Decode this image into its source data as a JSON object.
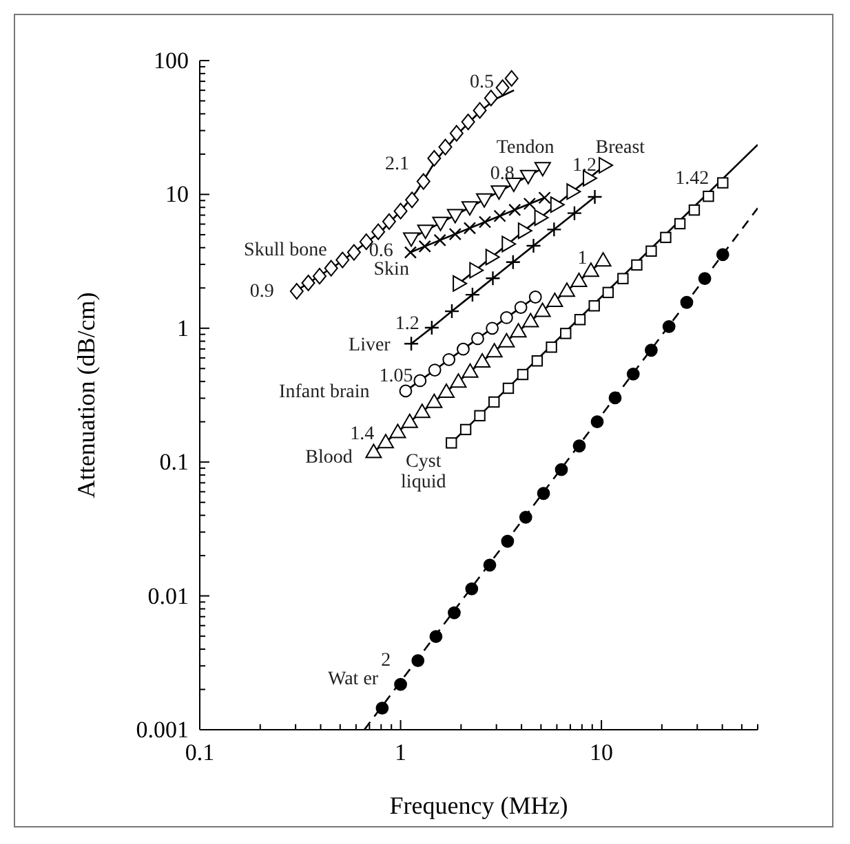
{
  "chart_data": {
    "type": "line",
    "xlabel": "Frequency (MHz)",
    "ylabel": "Attenuation (dB/cm)",
    "log": "xy",
    "grid": false,
    "legend": false,
    "xlim": [
      0.1,
      60
    ],
    "ylim": [
      0.001,
      100
    ],
    "xticks": [
      0.1,
      {
        "value": 0.2,
        "label": null
      },
      {
        "value": 0.3,
        "label": null
      },
      {
        "value": 0.4,
        "label": null
      },
      {
        "value": 0.5,
        "label": null
      },
      {
        "value": 0.6,
        "label": null
      },
      {
        "value": 0.7,
        "label": null
      },
      {
        "value": 0.8,
        "label": null
      },
      {
        "value": 0.9,
        "label": null
      },
      1,
      {
        "value": 2,
        "label": null
      },
      {
        "value": 3,
        "label": null
      },
      {
        "value": 4,
        "label": null
      },
      {
        "value": 5,
        "label": null
      },
      {
        "value": 6,
        "label": null
      },
      {
        "value": 7,
        "label": null
      },
      {
        "value": 8,
        "label": null
      },
      {
        "value": 9,
        "label": null
      },
      10,
      {
        "value": 20,
        "label": null
      },
      {
        "value": 30,
        "label": null
      },
      {
        "value": 40,
        "label": null
      },
      {
        "value": 50,
        "label": null
      },
      {
        "value": 60,
        "label": null
      }
    ],
    "yticks": [
      0.001,
      {
        "value": 0.002,
        "label": null
      },
      {
        "value": 0.003,
        "label": null
      },
      {
        "value": 0.004,
        "label": null
      },
      {
        "value": 0.005,
        "label": null
      },
      {
        "value": 0.006,
        "label": null
      },
      {
        "value": 0.007,
        "label": null
      },
      {
        "value": 0.008,
        "label": null
      },
      {
        "value": 0.009,
        "label": null
      },
      0.01,
      {
        "value": 0.02,
        "label": null
      },
      {
        "value": 0.03,
        "label": null
      },
      {
        "value": 0.04,
        "label": null
      },
      {
        "value": 0.05,
        "label": null
      },
      {
        "value": 0.06,
        "label": null
      },
      {
        "value": 0.07,
        "label": null
      },
      {
        "value": 0.08,
        "label": null
      },
      {
        "value": 0.09,
        "label": null
      },
      0.1,
      {
        "value": 0.2,
        "label": null
      },
      {
        "value": 0.3,
        "label": null
      },
      {
        "value": 0.4,
        "label": null
      },
      {
        "value": 0.5,
        "label": null
      },
      {
        "value": 0.6,
        "label": null
      },
      {
        "value": 0.7,
        "label": null
      },
      {
        "value": 0.8,
        "label": null
      },
      {
        "value": 0.9,
        "label": null
      },
      1,
      {
        "value": 2,
        "label": null
      },
      {
        "value": 3,
        "label": null
      },
      {
        "value": 4,
        "label": null
      },
      {
        "value": 5,
        "label": null
      },
      {
        "value": 6,
        "label": null
      },
      {
        "value": 7,
        "label": null
      },
      {
        "value": 8,
        "label": null
      },
      {
        "value": 9,
        "label": null
      },
      10,
      {
        "value": 20,
        "label": null
      },
      {
        "value": 30,
        "label": null
      },
      {
        "value": 40,
        "label": null
      },
      {
        "value": 50,
        "label": null
      },
      {
        "value": 60,
        "label": null
      },
      {
        "value": 70,
        "label": null
      },
      {
        "value": 80,
        "label": null
      },
      {
        "value": 90,
        "label": null
      },
      100
    ],
    "series": [
      {
        "name": "Skull bone",
        "type": "scatter",
        "marker": "diamond",
        "color": "#000000",
        "x": [
          0.304,
          0.347,
          0.395,
          0.451,
          0.514,
          0.586,
          0.675,
          0.774,
          0.877,
          1.0,
          1.14,
          1.3,
          1.47,
          1.67,
          1.9,
          2.17,
          2.48,
          2.82,
          3.22,
          3.57
        ],
        "values": [
          1.89,
          2.18,
          2.45,
          2.81,
          3.24,
          3.69,
          4.43,
          5.26,
          6.27,
          7.5,
          9.1,
          12.5,
          18.6,
          22.6,
          28.6,
          34.8,
          42.4,
          52.5,
          62.8,
          73.6
        ]
      },
      {
        "color": "#000000",
        "x": [
          0.3,
          0.5,
          0.8,
          1.0,
          1.2,
          1.5,
          2.0,
          2.5,
          3.0,
          3.67
        ],
        "values": [
          1.89,
          3.1,
          5.3,
          7.5,
          10.5,
          18,
          30,
          42,
          52,
          60
        ]
      },
      {
        "name": "Tendon",
        "marker": "triangle-down",
        "color": "#000000",
        "x": [
          1.13,
          1.33,
          1.58,
          1.87,
          2.21,
          2.61,
          3.09,
          3.66,
          4.32,
          5.1
        ],
        "values": [
          4.68,
          5.35,
          6.12,
          7.0,
          8.0,
          9.16,
          10.5,
          12.0,
          13.7,
          15.7
        ]
      },
      {
        "name": "Skin",
        "marker": "cross",
        "color": "#000000",
        "x": [
          1.12,
          1.32,
          1.57,
          1.87,
          2.21,
          2.63,
          3.12,
          3.7,
          4.39,
          5.21
        ],
        "values": [
          3.69,
          4.09,
          4.55,
          5.05,
          5.6,
          6.22,
          6.9,
          7.66,
          8.51,
          9.44
        ]
      },
      {
        "name": "Breast",
        "marker": "triangle-right",
        "color": "#000000",
        "x": [
          1.95,
          2.36,
          2.84,
          3.42,
          4.12,
          4.97,
          5.97,
          7.19,
          8.67,
          10.4
        ],
        "values": [
          2.16,
          2.71,
          3.4,
          4.26,
          5.35,
          6.7,
          8.38,
          10.5,
          13.2,
          16.5
        ]
      },
      {
        "name": "Liver",
        "marker": "plus",
        "color": "#000000",
        "x": [
          1.13,
          1.43,
          1.8,
          2.28,
          2.88,
          3.63,
          4.59,
          5.81,
          7.34,
          9.27
        ],
        "values": [
          0.766,
          1.01,
          1.34,
          1.78,
          2.36,
          3.12,
          4.13,
          5.47,
          7.24,
          9.59
        ]
      },
      {
        "name": "Infant brain",
        "marker": "circle",
        "color": "#000000",
        "x": [
          1.06,
          1.25,
          1.48,
          1.74,
          2.05,
          2.42,
          2.86,
          3.37,
          3.97,
          4.69
        ],
        "values": [
          0.34,
          0.406,
          0.487,
          0.583,
          0.698,
          0.836,
          1.0,
          1.2,
          1.43,
          1.71
        ]
      },
      {
        "name": "Blood",
        "marker": "triangle",
        "color": "#000000",
        "x": [
          0.734,
          0.843,
          0.968,
          1.11,
          1.28,
          1.47,
          1.69,
          1.94,
          2.22,
          2.55,
          2.93,
          3.37,
          3.86,
          4.44,
          5.09,
          5.86,
          6.73,
          7.73,
          8.87,
          10.2
        ],
        "values": [
          0.119,
          0.141,
          0.168,
          0.2,
          0.237,
          0.282,
          0.336,
          0.4,
          0.475,
          0.565,
          0.672,
          0.8,
          0.95,
          1.13,
          1.35,
          1.6,
          1.91,
          2.26,
          2.69,
          3.21
        ]
      },
      {
        "name": "Cyst liquid",
        "type": "scatter",
        "marker": "square",
        "color": "#000000",
        "x": [
          1.79,
          2.11,
          2.48,
          2.92,
          3.44,
          4.06,
          4.79,
          5.64,
          6.64,
          7.82,
          9.21,
          10.8,
          12.8,
          15.0,
          17.7,
          20.9,
          24.6,
          29.0,
          34.1,
          40.2
        ],
        "values": [
          0.139,
          0.175,
          0.222,
          0.281,
          0.356,
          0.451,
          0.57,
          0.722,
          0.914,
          1.16,
          1.47,
          1.85,
          2.35,
          2.97,
          3.77,
          4.77,
          6.04,
          7.64,
          9.68,
          12.2
        ]
      },
      {
        "color": "#000000",
        "x": [
          1.79,
          60
        ],
        "values": [
          0.139,
          23.5
        ]
      },
      {
        "name": "Wat er",
        "type": "scatter",
        "marker": "filled-circle",
        "color": "#000000",
        "x": [
          0.81,
          1.0,
          1.22,
          1.5,
          1.85,
          2.26,
          2.78,
          3.41,
          4.2,
          5.15,
          6.32,
          7.76,
          9.53,
          11.7,
          14.4,
          17.7,
          21.7,
          26.6,
          32.7,
          40.2
        ],
        "values": [
          0.00145,
          0.00218,
          0.00328,
          0.00497,
          0.00748,
          0.0113,
          0.017,
          0.0256,
          0.0387,
          0.0583,
          0.0879,
          0.132,
          0.2,
          0.302,
          0.455,
          0.685,
          1.03,
          1.56,
          2.35,
          3.55
        ]
      },
      {
        "line_style": "dashed",
        "color": "#000000",
        "x": [
          0.66,
          60
        ],
        "values": [
          0.001,
          7.9
        ]
      }
    ],
    "annotations": [
      "0.9",
      "2.1",
      "0.5",
      "0.8",
      "1.2",
      "0.6",
      "1.2",
      "1.05",
      "1.4",
      "1",
      "1.42",
      "2"
    ]
  }
}
